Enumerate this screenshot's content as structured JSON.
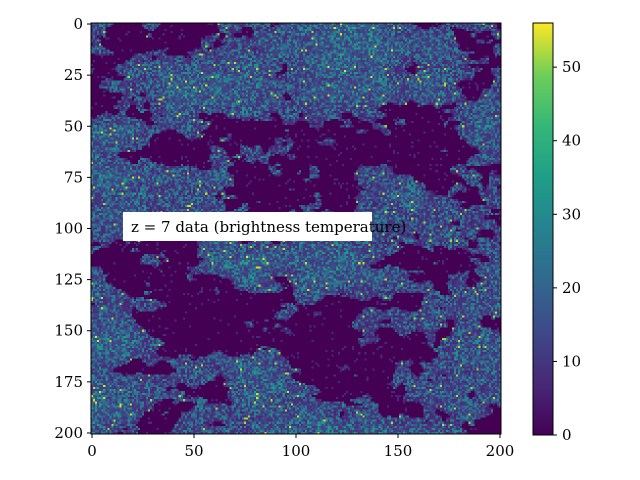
{
  "chart_data": {
    "type": "heatmap",
    "title": "",
    "xlabel": "",
    "ylabel": "",
    "grid_shape": [
      201,
      201
    ],
    "xlim": [
      0,
      201
    ],
    "ylim": [
      201,
      0
    ],
    "x_ticks": [
      0,
      50,
      100,
      150,
      200
    ],
    "y_ticks": [
      0,
      25,
      50,
      75,
      100,
      125,
      150,
      175,
      200
    ],
    "colormap": "viridis",
    "colorbar": {
      "range": [
        0,
        56
      ],
      "ticks": [
        0,
        10,
        20,
        30,
        40,
        50
      ]
    },
    "annotation": "z = 7 data (brightness temperature)",
    "colors": {
      "background_region": "#440154",
      "low": "#3b528b",
      "mid": "#21918c",
      "high": "#5ec962",
      "max": "#fde725"
    }
  }
}
